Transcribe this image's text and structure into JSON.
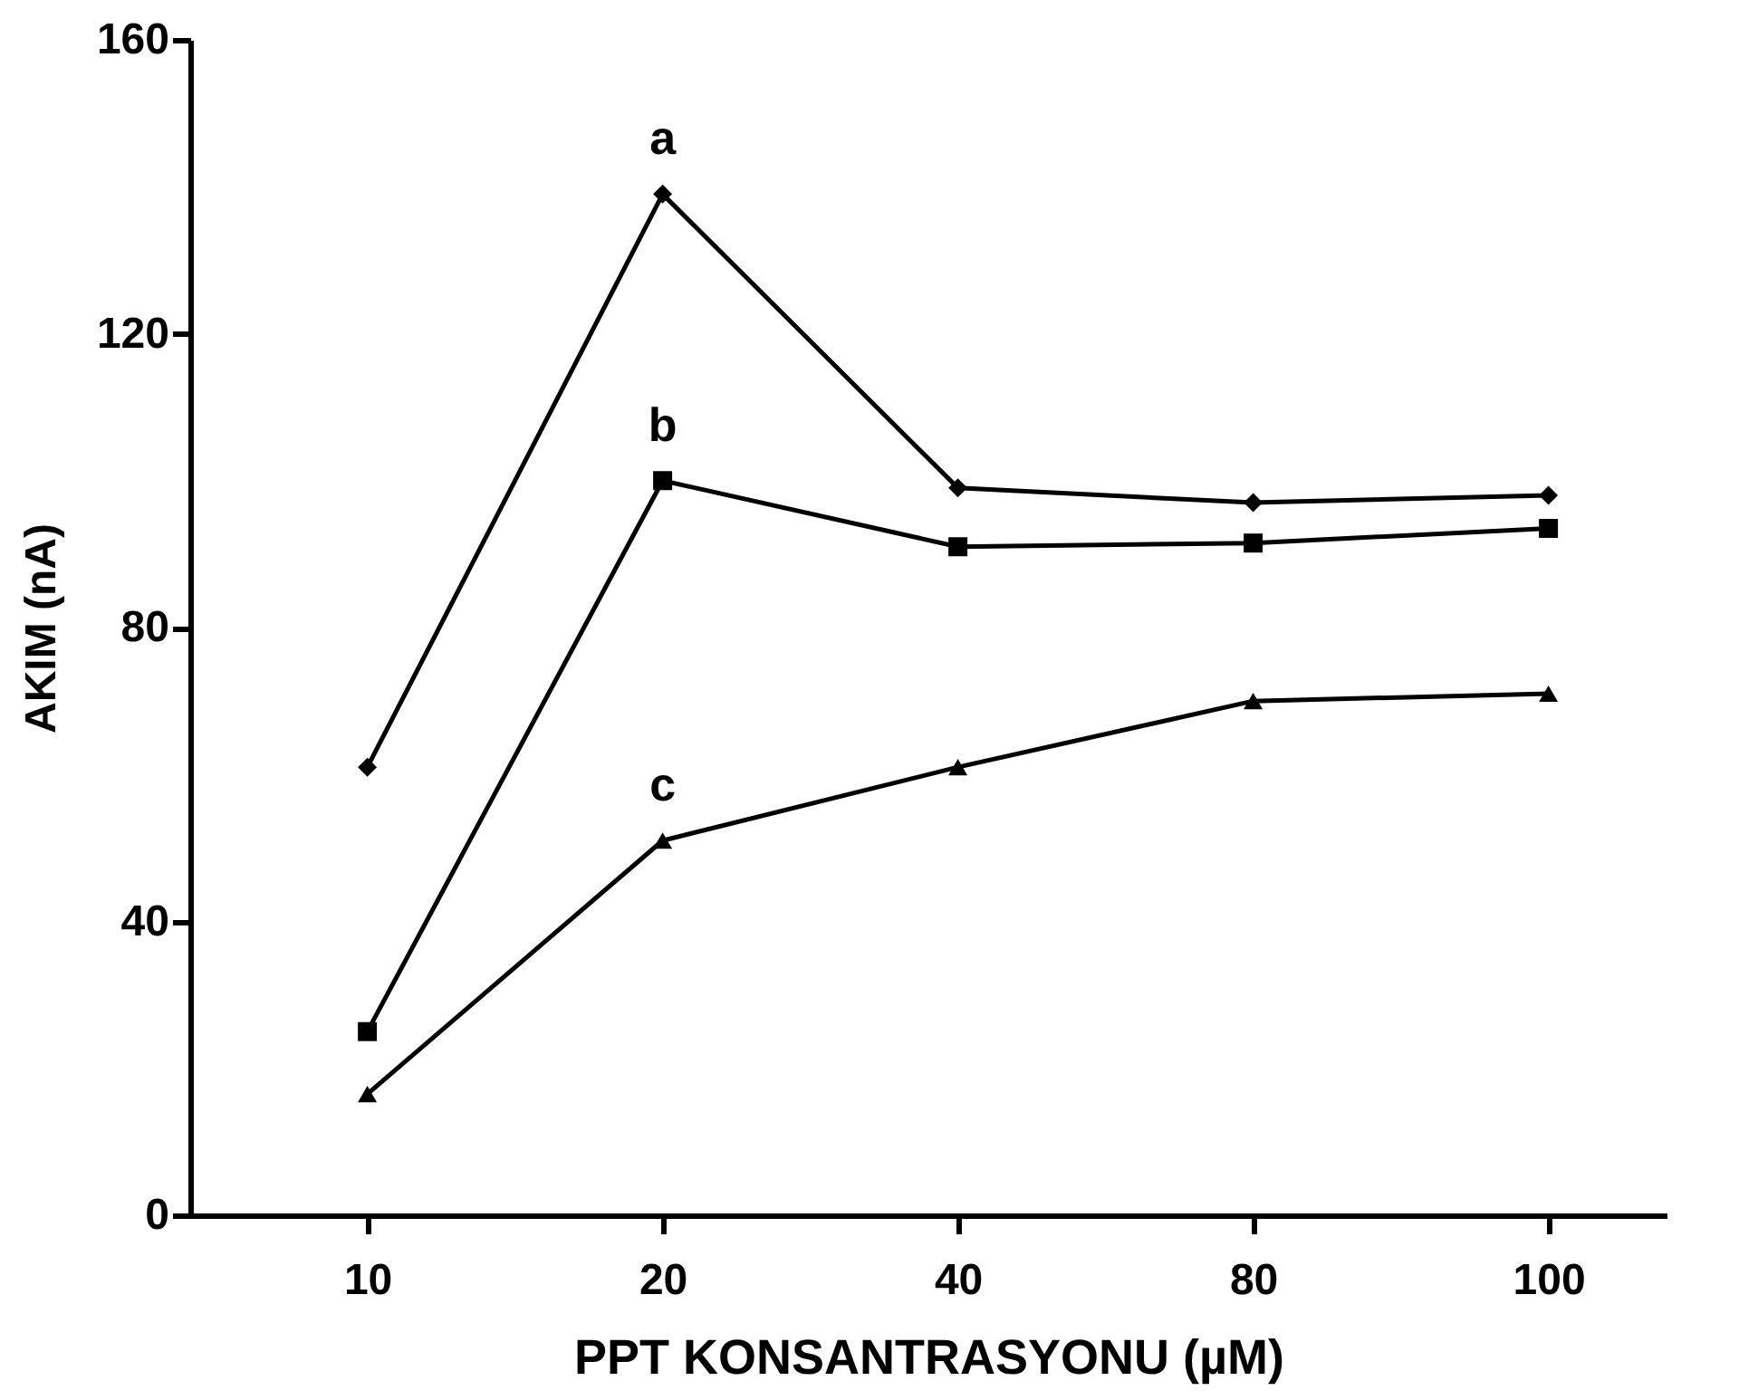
{
  "chart_data": {
    "type": "line",
    "xlabel": "PPT KONSANTRASYONU (µM)",
    "ylabel": "AKIM (nA)",
    "categories": [
      "10",
      "20",
      "40",
      "80",
      "100"
    ],
    "series": [
      {
        "name": "a",
        "color": "#000000",
        "marker": "diamond",
        "values": [
          61,
          139,
          99,
          97,
          98
        ]
      },
      {
        "name": "b",
        "color": "#000000",
        "marker": "square",
        "values": [
          25,
          100,
          91,
          91.5,
          93.5
        ]
      },
      {
        "name": "c",
        "color": "#000000",
        "marker": "triangle",
        "values": [
          16.5,
          51,
          61,
          70,
          71
        ]
      }
    ],
    "ylim": [
      0,
      160
    ],
    "yticks": [
      0,
      40,
      80,
      120,
      160
    ],
    "grid": false,
    "line_style": "solid"
  }
}
